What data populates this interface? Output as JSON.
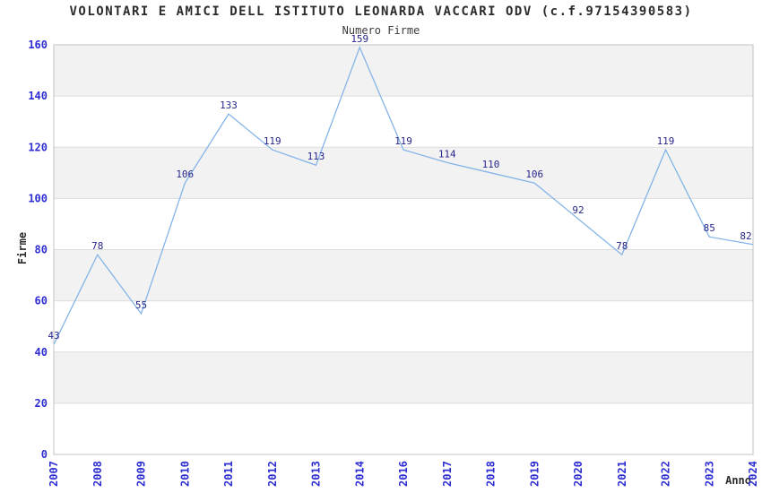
{
  "chart_data": {
    "type": "line",
    "title": "VOLONTARI E AMICI DELL ISTITUTO LEONARDA VACCARI ODV (c.f.97154390583)",
    "subtitle": "Numero Firme",
    "xlabel": "Anno",
    "ylabel": "Firme",
    "x": [
      "2007",
      "2008",
      "2009",
      "2010",
      "2011",
      "2012",
      "2013",
      "2014",
      "2016",
      "2017",
      "2018",
      "2019",
      "2020",
      "2021",
      "2022",
      "2023",
      "2024"
    ],
    "values": [
      43,
      78,
      55,
      106,
      133,
      119,
      113,
      159,
      119,
      114,
      110,
      106,
      92,
      78,
      119,
      85,
      82
    ],
    "ylim": [
      0,
      160
    ],
    "ytick_step": 20,
    "grid": "horizontal-bands-alternating",
    "legend": "none",
    "point_labels_shown": true,
    "colors": {
      "line": "#85b4e8",
      "tick_label": "#2d2dd2",
      "point_label": "#26268c",
      "band": "#f2f2f2",
      "gridline": "#dcdcdc",
      "border": "#c3c3c3",
      "title": "#2b2b2b",
      "axis_label": "#2b2b2b"
    }
  }
}
